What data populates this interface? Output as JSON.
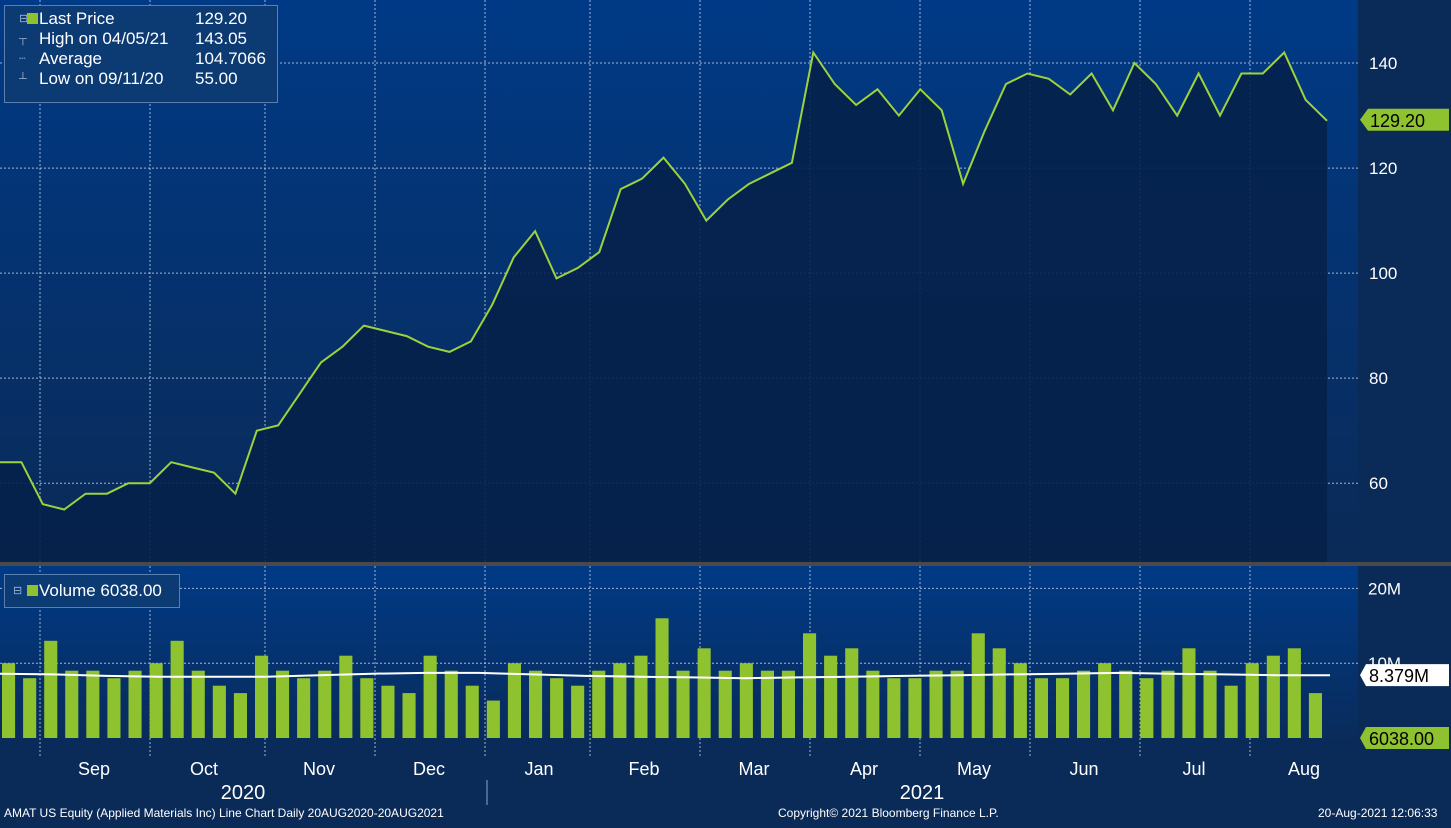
{
  "legend": {
    "last_price_label": "Last Price",
    "last_price_value": "129.20",
    "high_label": "High on 04/05/21",
    "high_value": "143.05",
    "average_label": "Average",
    "average_value": "104.7066",
    "low_label": "Low on 09/11/20",
    "low_value": "55.00"
  },
  "volume_legend": {
    "label": "Volume 6038.00"
  },
  "price_axis": {
    "ticks": [
      "140",
      "120",
      "100",
      "80",
      "60"
    ],
    "last_tag": "129.20"
  },
  "volume_axis": {
    "ticks": [
      "20M",
      "10M"
    ],
    "avg_tag": "8.379M",
    "last_tag": "6038.00"
  },
  "month_labels": [
    "Sep",
    "Oct",
    "Nov",
    "Dec",
    "Jan",
    "Feb",
    "Mar",
    "Apr",
    "May",
    "Jun",
    "Jul",
    "Aug"
  ],
  "year_labels": [
    "2020",
    "2021"
  ],
  "footer": {
    "left": "AMAT US Equity (Applied Materials Inc) Line Chart  Daily 20AUG2020-20AUG2021",
    "center": "Copyright© 2021 Bloomberg Finance L.P.",
    "right": "20-Aug-2021 12:06:33"
  },
  "colors": {
    "line": "#9cd33c",
    "bars": "#8fc22f",
    "background": "#0a2a57",
    "fill": "#06214a"
  },
  "chart_data": [
    {
      "type": "line",
      "title": "",
      "series": [
        {
          "name": "Last Price",
          "values": [
            64,
            64,
            56,
            55,
            58,
            58,
            60,
            60,
            64,
            63,
            62,
            58,
            70,
            71,
            77,
            83,
            86,
            90,
            89,
            88,
            86,
            85,
            87,
            94,
            103,
            108,
            99,
            101,
            104,
            116,
            118,
            122,
            117,
            110,
            114,
            117,
            119,
            121,
            142,
            136,
            132,
            135,
            130,
            135,
            131,
            117,
            127,
            136,
            138,
            137,
            134,
            138,
            131,
            140,
            136,
            130,
            138,
            130,
            138,
            138,
            142,
            133,
            129
          ]
        }
      ],
      "ylim": [
        45,
        152
      ],
      "xlabel": "",
      "ylabel": "",
      "grid": true
    },
    {
      "type": "bar",
      "title": "",
      "series": [
        {
          "name": "Volume",
          "values": [
            10,
            8,
            13,
            9,
            9,
            8,
            9,
            10,
            13,
            9,
            7,
            6,
            11,
            9,
            8,
            9,
            11,
            8,
            7,
            6,
            11,
            9,
            7,
            5,
            10,
            9,
            8,
            7,
            9,
            10,
            11,
            16,
            9,
            12,
            9,
            10,
            9,
            9,
            14,
            11,
            12,
            9,
            8,
            8,
            9,
            9,
            14,
            12,
            10,
            8,
            8,
            9,
            10,
            9,
            8,
            9,
            12,
            9,
            7,
            10,
            11,
            12,
            6
          ]
        },
        {
          "name": "",
          "values": [
            8.6,
            8.5,
            8.3,
            8.2,
            8.2,
            8.2,
            8.4,
            8.6,
            8.7,
            8.7,
            8.5,
            8.3,
            8.2,
            8.1,
            8.0,
            8.1,
            8.2,
            8.3,
            8.4,
            8.5,
            8.6,
            8.7,
            8.6,
            8.5,
            8.4,
            8.4
          ]
        }
      ],
      "ylim": [
        0,
        23
      ],
      "xlabel": "",
      "ylabel": "",
      "grid": true
    }
  ]
}
